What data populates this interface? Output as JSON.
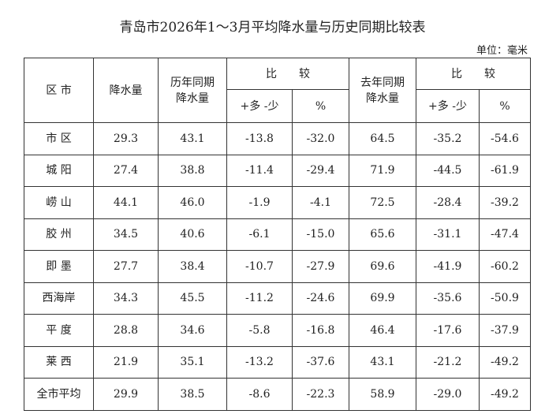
{
  "title": "青岛市2026年1～3月平均降水量与历史同期比较表",
  "unit": "单位：毫米",
  "table": {
    "header": {
      "district": "区 市",
      "precip": "降水量",
      "hist": [
        "历年同期",
        "降水量"
      ],
      "compare1": "比　　较",
      "last": [
        "去年同期",
        "降水量"
      ],
      "compare2": "比　　较",
      "diff1": "+多 -少",
      "pct1": "%",
      "diff2": "+多 -少",
      "pct2": "%"
    },
    "rows": [
      [
        "市 区",
        "29.3",
        "43.1",
        "-13.8",
        "-32.0",
        "64.5",
        "-35.2",
        "-54.6"
      ],
      [
        "城 阳",
        "27.4",
        "38.8",
        "-11.4",
        "-29.4",
        "71.9",
        "-44.5",
        "-61.9"
      ],
      [
        "崂 山",
        "44.1",
        "46.0",
        "-1.9",
        "-4.1",
        "72.5",
        "-28.4",
        "-39.2"
      ],
      [
        "胶 州",
        "34.5",
        "40.6",
        "-6.1",
        "-15.0",
        "65.6",
        "-31.1",
        "-47.4"
      ],
      [
        "即 墨",
        "27.7",
        "38.4",
        "-10.7",
        "-27.9",
        "69.6",
        "-41.9",
        "-60.2"
      ],
      [
        "西海岸",
        "34.3",
        "45.5",
        "-11.2",
        "-24.6",
        "69.9",
        "-35.6",
        "-50.9"
      ],
      [
        "平 度",
        "28.8",
        "34.6",
        "-5.8",
        "-16.8",
        "46.4",
        "-17.6",
        "-37.9"
      ],
      [
        "莱 西",
        "21.9",
        "35.1",
        "-13.2",
        "-37.6",
        "43.1",
        "-21.2",
        "-49.2"
      ],
      [
        "全市平均",
        "29.9",
        "38.5",
        "-8.6",
        "-22.3",
        "58.9",
        "-29.0",
        "-49.2"
      ]
    ]
  }
}
